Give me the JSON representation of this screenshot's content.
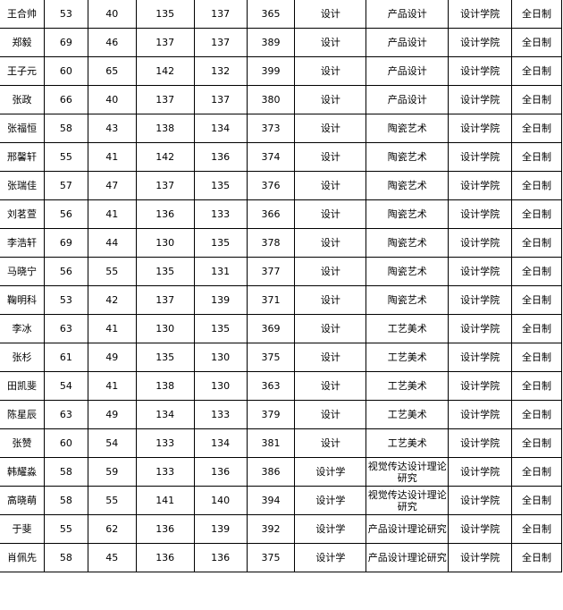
{
  "rows": [
    [
      "王合帅",
      "53",
      "40",
      "135",
      "137",
      "365",
      "设计",
      "产品设计",
      "设计学院",
      "全日制"
    ],
    [
      "郑毅",
      "69",
      "46",
      "137",
      "137",
      "389",
      "设计",
      "产品设计",
      "设计学院",
      "全日制"
    ],
    [
      "王子元",
      "60",
      "65",
      "142",
      "132",
      "399",
      "设计",
      "产品设计",
      "设计学院",
      "全日制"
    ],
    [
      "张政",
      "66",
      "40",
      "137",
      "137",
      "380",
      "设计",
      "产品设计",
      "设计学院",
      "全日制"
    ],
    [
      "张福恒",
      "58",
      "43",
      "138",
      "134",
      "373",
      "设计",
      "陶瓷艺术",
      "设计学院",
      "全日制"
    ],
    [
      "邢馨轩",
      "55",
      "41",
      "142",
      "136",
      "374",
      "设计",
      "陶瓷艺术",
      "设计学院",
      "全日制"
    ],
    [
      "张瑞佳",
      "57",
      "47",
      "137",
      "135",
      "376",
      "设计",
      "陶瓷艺术",
      "设计学院",
      "全日制"
    ],
    [
      "刘茗萱",
      "56",
      "41",
      "136",
      "133",
      "366",
      "设计",
      "陶瓷艺术",
      "设计学院",
      "全日制"
    ],
    [
      "李浩轩",
      "69",
      "44",
      "130",
      "135",
      "378",
      "设计",
      "陶瓷艺术",
      "设计学院",
      "全日制"
    ],
    [
      "马晓宁",
      "56",
      "55",
      "135",
      "131",
      "377",
      "设计",
      "陶瓷艺术",
      "设计学院",
      "全日制"
    ],
    [
      "鞠明科",
      "53",
      "42",
      "137",
      "139",
      "371",
      "设计",
      "陶瓷艺术",
      "设计学院",
      "全日制"
    ],
    [
      "李冰",
      "63",
      "41",
      "130",
      "135",
      "369",
      "设计",
      "工艺美术",
      "设计学院",
      "全日制"
    ],
    [
      "张杉",
      "61",
      "49",
      "135",
      "130",
      "375",
      "设计",
      "工艺美术",
      "设计学院",
      "全日制"
    ],
    [
      "田凯斐",
      "54",
      "41",
      "138",
      "130",
      "363",
      "设计",
      "工艺美术",
      "设计学院",
      "全日制"
    ],
    [
      "陈星辰",
      "63",
      "49",
      "134",
      "133",
      "379",
      "设计",
      "工艺美术",
      "设计学院",
      "全日制"
    ],
    [
      "张赞",
      "60",
      "54",
      "133",
      "134",
      "381",
      "设计",
      "工艺美术",
      "设计学院",
      "全日制"
    ],
    [
      "韩耀淼",
      "58",
      "59",
      "133",
      "136",
      "386",
      "设计学",
      "视觉传达设计理论研究",
      "设计学院",
      "全日制"
    ],
    [
      "高晓萌",
      "58",
      "55",
      "141",
      "140",
      "394",
      "设计学",
      "视觉传达设计理论研究",
      "设计学院",
      "全日制"
    ],
    [
      "于斐",
      "55",
      "62",
      "136",
      "139",
      "392",
      "设计学",
      "产品设计理论研究",
      "设计学院",
      "全日制"
    ],
    [
      "肖佩先",
      "58",
      "45",
      "136",
      "136",
      "375",
      "设计学",
      "产品设计理论研究",
      "设计学院",
      "全日制"
    ]
  ]
}
